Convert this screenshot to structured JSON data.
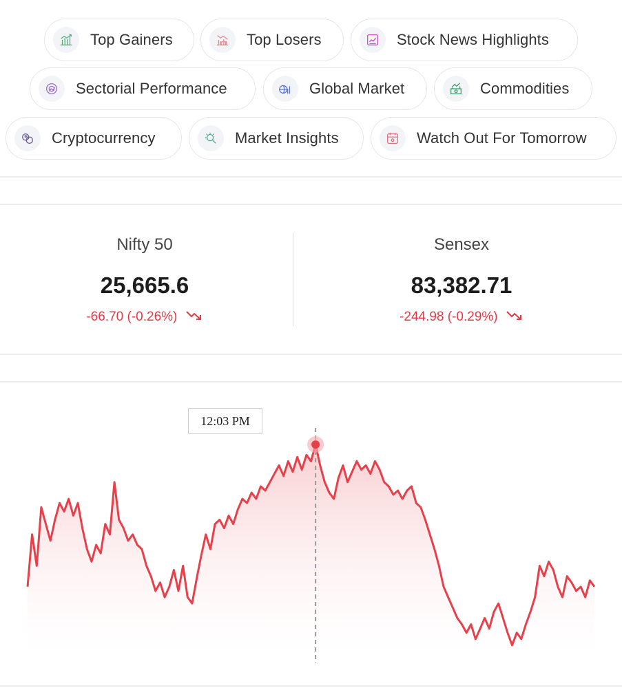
{
  "quick_links": [
    {
      "label": "Top Gainers",
      "icon": "top-gainers-icon"
    },
    {
      "label": "Top Losers",
      "icon": "top-losers-icon"
    },
    {
      "label": "Stock News Highlights",
      "icon": "news-icon"
    },
    {
      "label": "Sectorial Performance",
      "icon": "sector-icon"
    },
    {
      "label": "Global Market",
      "icon": "global-market-icon"
    },
    {
      "label": "Commodities",
      "icon": "commodities-icon"
    },
    {
      "label": "Cryptocurrency",
      "icon": "crypto-icon"
    },
    {
      "label": "Market Insights",
      "icon": "insights-icon"
    },
    {
      "label": "Watch Out For Tomorrow",
      "icon": "calendar-icon"
    }
  ],
  "indices": [
    {
      "name": "Nifty 50",
      "value": "25,665.6",
      "change": "-66.70 (-0.26%)"
    },
    {
      "name": "Sensex",
      "value": "83,382.71",
      "change": "-244.98 (-0.29%)"
    }
  ],
  "colors": {
    "negative": "#e53945",
    "line": "#e8404a"
  },
  "chart": {
    "tooltip_time": "12:03 PM",
    "hover_index": 63
  },
  "chart_data": {
    "type": "area",
    "xlabel": "",
    "ylabel": "",
    "ylim": [
      0,
      1
    ],
    "values": [
      0.3,
      0.55,
      0.4,
      0.68,
      0.6,
      0.52,
      0.62,
      0.7,
      0.66,
      0.72,
      0.64,
      0.7,
      0.58,
      0.48,
      0.42,
      0.5,
      0.46,
      0.6,
      0.55,
      0.8,
      0.62,
      0.58,
      0.52,
      0.55,
      0.5,
      0.48,
      0.4,
      0.35,
      0.28,
      0.32,
      0.25,
      0.3,
      0.38,
      0.28,
      0.4,
      0.25,
      0.22,
      0.34,
      0.45,
      0.55,
      0.48,
      0.6,
      0.62,
      0.58,
      0.64,
      0.6,
      0.67,
      0.72,
      0.7,
      0.75,
      0.72,
      0.78,
      0.76,
      0.8,
      0.84,
      0.88,
      0.83,
      0.9,
      0.85,
      0.92,
      0.86,
      0.93,
      0.9,
      0.98,
      0.88,
      0.8,
      0.75,
      0.72,
      0.82,
      0.88,
      0.8,
      0.85,
      0.9,
      0.86,
      0.88,
      0.84,
      0.9,
      0.86,
      0.8,
      0.78,
      0.74,
      0.76,
      0.72,
      0.76,
      0.78,
      0.7,
      0.68,
      0.62,
      0.55,
      0.48,
      0.4,
      0.3,
      0.25,
      0.2,
      0.15,
      0.12,
      0.08,
      0.12,
      0.05,
      0.1,
      0.15,
      0.1,
      0.18,
      0.22,
      0.15,
      0.08,
      0.02,
      0.08,
      0.05,
      0.12,
      0.18,
      0.25,
      0.4,
      0.35,
      0.42,
      0.38,
      0.3,
      0.25,
      0.35,
      0.32,
      0.28,
      0.3,
      0.25,
      0.33,
      0.3
    ]
  }
}
